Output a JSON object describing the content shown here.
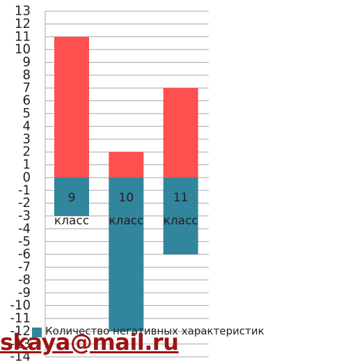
{
  "chart_data": {
    "type": "bar",
    "categories": [
      "9 класс",
      "10 класс",
      "11 класс"
    ],
    "series": [
      {
        "color": "#ff4f4f",
        "values": [
          11,
          2,
          7
        ]
      },
      {
        "name": "Количество негативных характеристик",
        "color": "#31859c",
        "values": [
          -3,
          -12,
          -6
        ]
      }
    ],
    "ylim": [
      -14,
      13
    ],
    "yticks": [
      -14,
      -13,
      -12,
      -11,
      -10,
      -9,
      -8,
      -7,
      -6,
      -5,
      -4,
      -3,
      -2,
      -1,
      0,
      1,
      2,
      3,
      4,
      5,
      6,
      7,
      8,
      9,
      10,
      11,
      12,
      13
    ],
    "grid": true
  },
  "watermark": "skaya@mail.ru"
}
